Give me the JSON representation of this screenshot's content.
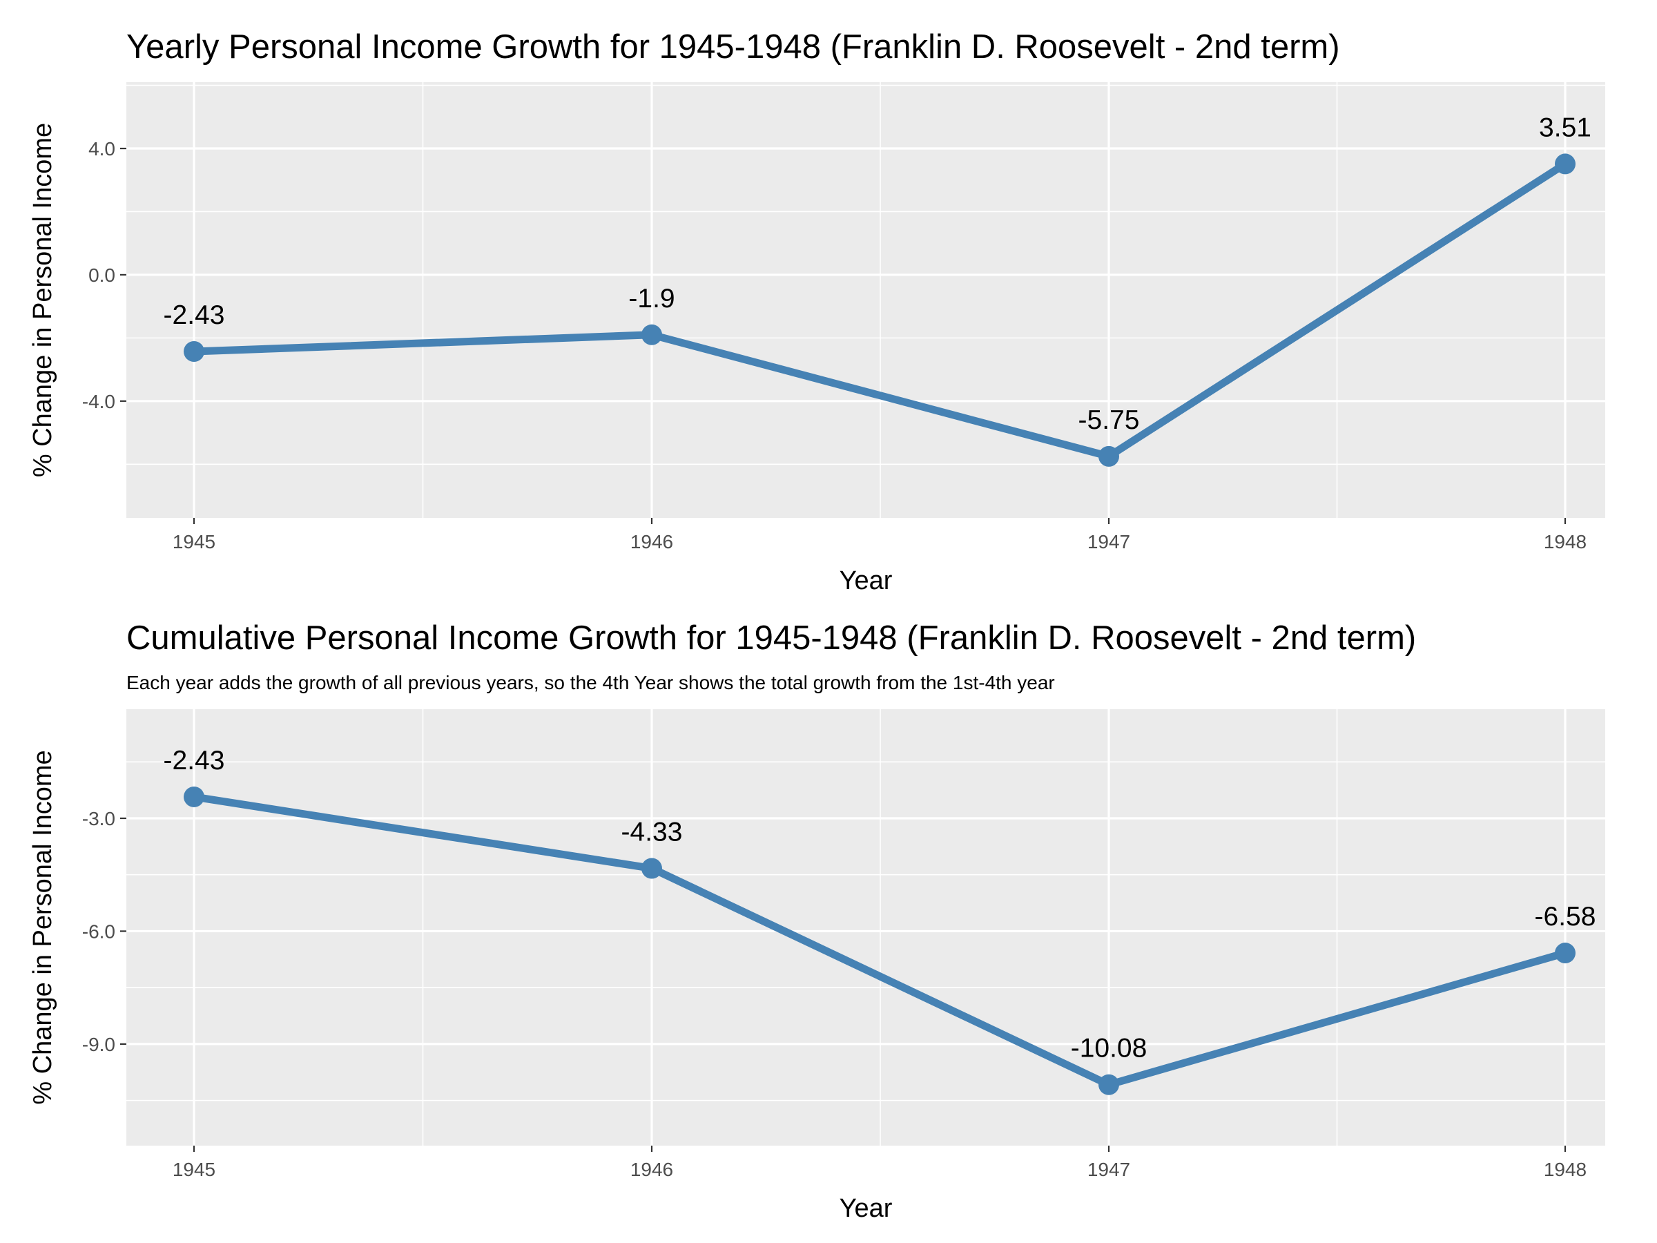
{
  "chart_data": [
    {
      "type": "line",
      "title": "Yearly Personal Income Growth for 1945-1948 (Franklin D. Roosevelt - 2nd term)",
      "subtitle": "",
      "xlabel": "Year",
      "ylabel": "% Change in Personal Income",
      "categories": [
        "1945",
        "1946",
        "1947",
        "1948"
      ],
      "values": [
        -2.43,
        -1.9,
        -5.75,
        3.51
      ],
      "data_labels": [
        "-2.43",
        "-1.9",
        "-5.75",
        "3.51"
      ],
      "ylim": [
        -7.7,
        6.1
      ],
      "yticks": [
        4.0,
        0.0,
        -4.0
      ],
      "ytick_labels": [
        "4.0",
        "0.0",
        "-4.0"
      ],
      "grid": true,
      "line_color": "#4682b4",
      "panel_color": "#ebebeb"
    },
    {
      "type": "line",
      "title": "Cumulative Personal Income Growth for 1945-1948 (Franklin D. Roosevelt - 2nd term)",
      "subtitle": "Each year adds the growth of all previous years, so the 4th Year shows the total growth from the 1st-4th year",
      "xlabel": "Year",
      "ylabel": "% Change in Personal Income",
      "categories": [
        "1945",
        "1946",
        "1947",
        "1948"
      ],
      "values": [
        -2.43,
        -4.33,
        -10.08,
        -6.58
      ],
      "data_labels": [
        "-2.43",
        "-4.33",
        "-10.08",
        "-6.58"
      ],
      "ylim": [
        -11.7,
        -0.1
      ],
      "yticks": [
        -3.0,
        -6.0,
        -9.0
      ],
      "ytick_labels": [
        "-3.0",
        "-6.0",
        "-9.0"
      ],
      "grid": true,
      "line_color": "#4682b4",
      "panel_color": "#ebebeb"
    }
  ]
}
